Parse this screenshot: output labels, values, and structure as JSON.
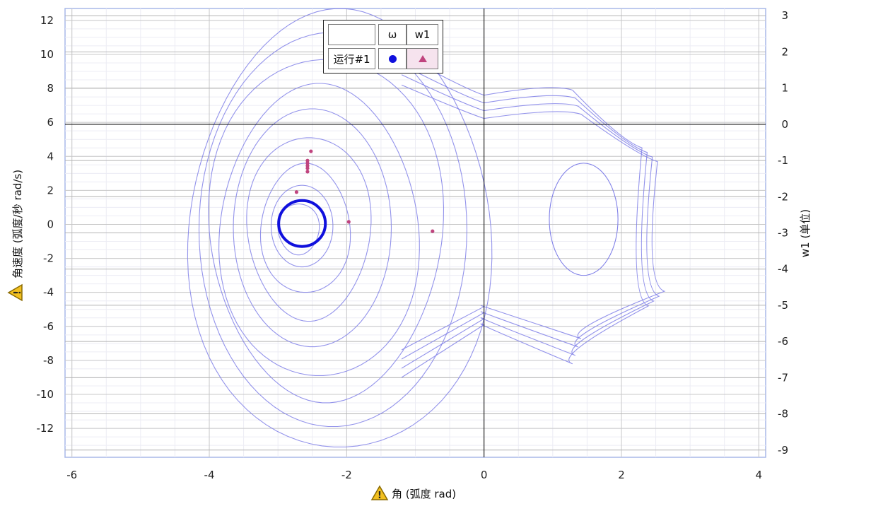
{
  "chart_data": {
    "type": "line",
    "xlabel": "角 (弧度 rad)",
    "ylabel": "角速度 (弧度/秒 rad/s)",
    "y2label": "w1 (单位)",
    "xlim": [
      -6.1,
      4.1
    ],
    "ylim": [
      -13.7,
      12.7
    ],
    "y2lim": [
      -9.2,
      3.2
    ],
    "xticks": [
      -6,
      -4,
      -2,
      0,
      2,
      4
    ],
    "yticks": [
      12,
      10,
      8,
      6,
      4,
      2,
      0,
      -2,
      -4,
      -6,
      -8,
      -10,
      -12
    ],
    "y2ticks": [
      3,
      2,
      1,
      0,
      -1,
      -2,
      -3,
      -4,
      -5,
      -6,
      -7,
      -8,
      -9
    ],
    "grid": true,
    "legend_position": "top-center",
    "legend": {
      "header": [
        "",
        "ω",
        "w1"
      ],
      "rows": [
        {
          "label": "运行#1",
          "omega_marker": "circle",
          "w1_marker": "triangle"
        }
      ]
    },
    "colors": {
      "omega": "#1010dd",
      "trajectory": "#8080e8",
      "w1": "#c0447e",
      "axis_line": "#000000",
      "grid": "#c8c8c8"
    },
    "series": [
      {
        "name": "ω",
        "trajectory_loops": [
          {
            "cx": -2.1,
            "cy": -0.2,
            "rx": 2.2,
            "ry": 12.9
          },
          {
            "cx": -2.2,
            "cy": -0.3,
            "rx": 1.95,
            "ry": 11.6
          },
          {
            "cx": -2.3,
            "cy": -0.4,
            "rx": 1.7,
            "ry": 10.1
          },
          {
            "cx": -2.4,
            "cy": -0.3,
            "rx": 1.45,
            "ry": 8.6
          },
          {
            "cx": -2.5,
            "cy": -0.2,
            "rx": 1.15,
            "ry": 7.0
          },
          {
            "cx": -2.55,
            "cy": -0.3,
            "rx": 0.9,
            "ry": 5.4
          },
          {
            "cx": -2.6,
            "cy": -0.2,
            "rx": 0.65,
            "ry": 3.8
          },
          {
            "cx": -2.65,
            "cy": -0.1,
            "rx": 0.45,
            "ry": 2.4
          },
          {
            "cx": -2.7,
            "cy": -0.3,
            "rx": 0.3,
            "ry": 1.5
          }
        ],
        "right_lobe": [
          {
            "x": 0.0,
            "y": 7.6
          },
          {
            "x": 1.4,
            "y": 7.9
          },
          {
            "x": 2.5,
            "y": 4.5
          },
          {
            "x": 2.6,
            "y": -4.8
          },
          {
            "x": 1.4,
            "y": -8.2
          },
          {
            "x": 0.0,
            "y": -5.9
          }
        ],
        "inner_loop": {
          "cx": 1.45,
          "cy": 0.3,
          "rx": 0.5,
          "ry": 3.3
        },
        "final_cycle": {
          "cx": -2.65,
          "cy": 0.05,
          "rx": 0.34,
          "ry": 1.35
        }
      },
      {
        "name": "w1",
        "points": [
          {
            "x": -2.52,
            "y": 4.3
          },
          {
            "x": -2.57,
            "y": 3.75
          },
          {
            "x": -2.57,
            "y": 3.6
          },
          {
            "x": -2.57,
            "y": 3.45
          },
          {
            "x": -2.57,
            "y": 3.3
          },
          {
            "x": -2.57,
            "y": 3.1
          },
          {
            "x": -2.73,
            "y": 1.9
          },
          {
            "x": -1.97,
            "y": 0.15
          },
          {
            "x": -0.75,
            "y": -0.4
          }
        ]
      }
    ]
  },
  "warning_icon": "warning-triangle-icon"
}
